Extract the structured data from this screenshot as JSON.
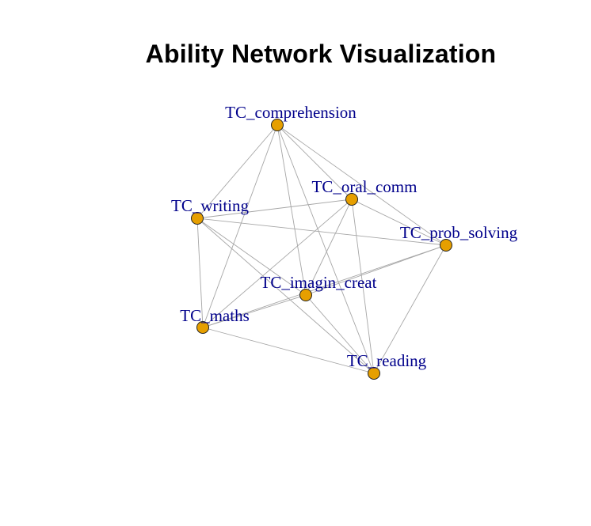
{
  "title": "Ability Network Visualization",
  "colors": {
    "node_fill": "#E69F00",
    "node_stroke": "#222222",
    "edge": "#A6A6A6",
    "label": "#00008B",
    "title": "#000000",
    "background": "#FFFFFF"
  },
  "nodes": [
    {
      "id": "TC_comprehension",
      "label": "TC_comprehension"
    },
    {
      "id": "TC_oral_comm",
      "label": "TC_oral_comm"
    },
    {
      "id": "TC_writing",
      "label": "TC_writing"
    },
    {
      "id": "TC_prob_solving",
      "label": "TC_prob_solving"
    },
    {
      "id": "TC_imagin_creat",
      "label": "TC_imagin_creat"
    },
    {
      "id": "TC_maths",
      "label": "TC_maths"
    },
    {
      "id": "TC_reading",
      "label": "TC_reading"
    }
  ],
  "edges": [
    [
      "TC_comprehension",
      "TC_oral_comm"
    ],
    [
      "TC_comprehension",
      "TC_writing"
    ],
    [
      "TC_comprehension",
      "TC_prob_solving"
    ],
    [
      "TC_comprehension",
      "TC_imagin_creat"
    ],
    [
      "TC_comprehension",
      "TC_maths"
    ],
    [
      "TC_comprehension",
      "TC_reading"
    ],
    [
      "TC_oral_comm",
      "TC_writing"
    ],
    [
      "TC_oral_comm",
      "TC_prob_solving"
    ],
    [
      "TC_oral_comm",
      "TC_imagin_creat"
    ],
    [
      "TC_oral_comm",
      "TC_maths"
    ],
    [
      "TC_oral_comm",
      "TC_reading"
    ],
    [
      "TC_writing",
      "TC_prob_solving"
    ],
    [
      "TC_writing",
      "TC_imagin_creat"
    ],
    [
      "TC_writing",
      "TC_maths"
    ],
    [
      "TC_writing",
      "TC_reading"
    ],
    [
      "TC_prob_solving",
      "TC_imagin_creat"
    ],
    [
      "TC_prob_solving",
      "TC_maths"
    ],
    [
      "TC_prob_solving",
      "TC_reading"
    ],
    [
      "TC_imagin_creat",
      "TC_maths"
    ],
    [
      "TC_imagin_creat",
      "TC_reading"
    ],
    [
      "TC_maths",
      "TC_reading"
    ]
  ]
}
